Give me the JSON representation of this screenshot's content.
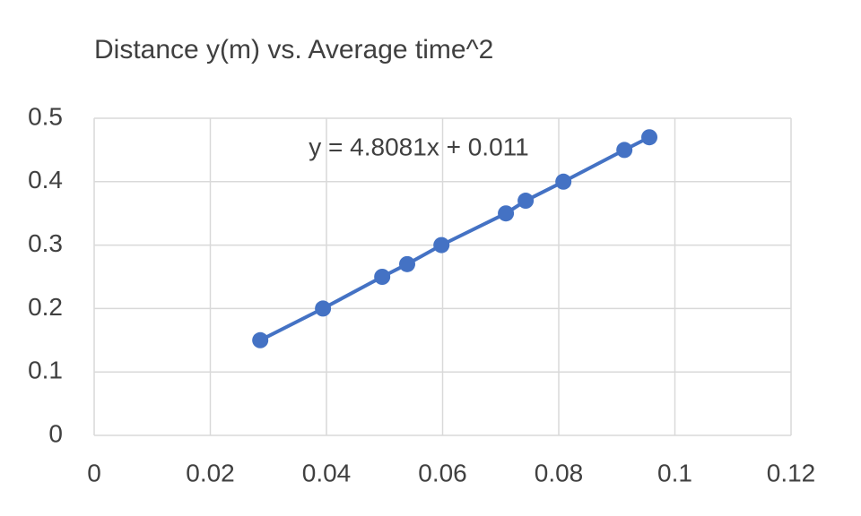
{
  "chart_data": {
    "type": "scatter",
    "title": "Distance y(m) vs. Average time^2",
    "annotation": "y = 4.8081x + 0.011",
    "series": [
      {
        "color": "#4472c4",
        "x": [
          0.0286,
          0.0394,
          0.0496,
          0.0539,
          0.0598,
          0.0709,
          0.0743,
          0.0808,
          0.0913,
          0.0956
        ],
        "values": [
          0.15,
          0.2,
          0.25,
          0.27,
          0.3,
          0.35,
          0.37,
          0.4,
          0.45,
          0.47
        ]
      }
    ],
    "xlim": [
      0,
      0.12
    ],
    "xticks": [
      0,
      0.02,
      0.04,
      0.06,
      0.08,
      0.1,
      0.12
    ],
    "ylim": [
      0,
      0.5
    ],
    "yticks": [
      0,
      0.1,
      0.2,
      0.3,
      0.4,
      0.5
    ],
    "grid": true,
    "lines": true
  }
}
